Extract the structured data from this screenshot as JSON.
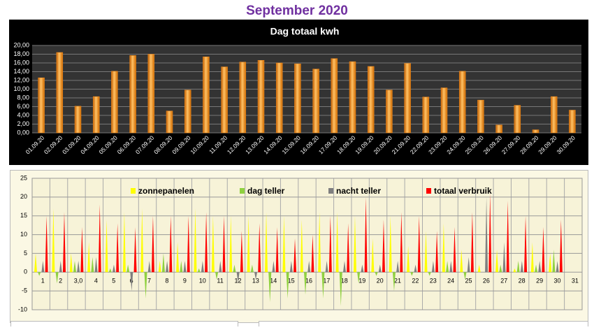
{
  "page_title": "September 2020",
  "chart_data": [
    {
      "type": "bar",
      "title": "Dag totaal kwh",
      "categories": [
        "01.09.20",
        "02.09.20",
        "03.09.20",
        "04.09.20",
        "05.09.20",
        "06.09.20",
        "07.09.20",
        "08.09.20",
        "09.09.20",
        "10.09.20",
        "11.09.20",
        "12.09.20",
        "13.09.20",
        "14.09.20",
        "15.09.20",
        "16.09.20",
        "17.09.20",
        "18.09.20",
        "19.09.20",
        "20.09.20",
        "21.09.20",
        "22.09.20",
        "23.09.20",
        "24.09.20",
        "25.09.20",
        "26.09.20",
        "27.09.20",
        "28.09.20",
        "29.09.20",
        "30.09.20"
      ],
      "values": [
        12.6,
        18.4,
        6.1,
        8.3,
        14.1,
        17.7,
        18.0,
        5.0,
        9.8,
        17.4,
        15.1,
        16.2,
        16.6,
        16.0,
        15.8,
        14.6,
        17.0,
        16.3,
        15.2,
        9.8,
        15.9,
        8.2,
        10.3,
        14.1,
        7.5,
        1.8,
        6.3,
        0.7,
        8.3,
        5.2
      ],
      "color": "#f08a1c",
      "ylim": [
        0,
        20
      ],
      "yticks": [
        {
          "value": 0,
          "label": "0,00"
        },
        {
          "value": 2,
          "label": "2,00"
        },
        {
          "value": 4,
          "label": "4,00"
        },
        {
          "value": 6,
          "label": "6,00"
        },
        {
          "value": 8,
          "label": "8,00"
        },
        {
          "value": 10,
          "label": "10,00"
        },
        {
          "value": 12,
          "label": "12,00"
        },
        {
          "value": 14,
          "label": "14,00"
        },
        {
          "value": 16,
          "label": "16,00"
        },
        {
          "value": 18,
          "label": "18,00"
        },
        {
          "value": 20,
          "label": "20,00"
        }
      ],
      "grid": true
    },
    {
      "type": "spike",
      "categories": [
        "1",
        "2",
        "3,0",
        "4",
        "5",
        "6",
        "7",
        "8",
        "9",
        "10",
        "11",
        "12",
        "13",
        "14",
        "15",
        "16",
        "17",
        "18",
        "19",
        "20",
        "21",
        "22",
        "23",
        "24",
        "25",
        "26",
        "27",
        "28",
        "29",
        "30",
        "31"
      ],
      "series": [
        {
          "name": "zonnepanelen",
          "color": "#ffff00",
          "values": [
            5,
            17,
            5,
            8,
            14,
            16,
            17,
            3,
            8,
            17,
            15,
            15,
            15,
            16,
            15,
            14,
            16,
            16,
            15,
            9,
            15,
            7,
            11,
            13,
            6,
            2,
            6,
            1,
            8,
            5,
            null
          ]
        },
        {
          "name": "dag teller",
          "color": "#8fd13f",
          "values": [
            -1,
            -3,
            3,
            4,
            1,
            2,
            -7,
            5,
            3,
            1,
            -2,
            2,
            2,
            -8,
            -7,
            -6,
            -7,
            -9,
            -3,
            -1,
            -5,
            -1,
            -1,
            3,
            -2,
            0,
            2,
            3,
            2,
            6,
            null
          ]
        },
        {
          "name": "nacht teller",
          "color": "#7f7f7f",
          "values": [
            3,
            3,
            3,
            4,
            2,
            -5,
            3,
            3,
            3,
            3,
            3,
            -3,
            -2,
            3,
            3,
            3,
            3,
            3,
            2,
            2,
            3,
            2,
            3,
            3,
            4,
            20,
            8,
            3,
            3,
            3,
            null
          ]
        },
        {
          "name": "totaal verbruik",
          "color": "#ff0000",
          "values": [
            15,
            16,
            12,
            18,
            13,
            12,
            15,
            15,
            15,
            16,
            15,
            11,
            13,
            12,
            9,
            10,
            15,
            13,
            20,
            14,
            16,
            15,
            11,
            12,
            16,
            21,
            19,
            15,
            12,
            14,
            null
          ]
        }
      ],
      "ylim": [
        -10,
        25
      ],
      "yticks": [
        -10,
        -5,
        0,
        5,
        10,
        15,
        20,
        25
      ],
      "grid": true,
      "legend": "top"
    }
  ]
}
